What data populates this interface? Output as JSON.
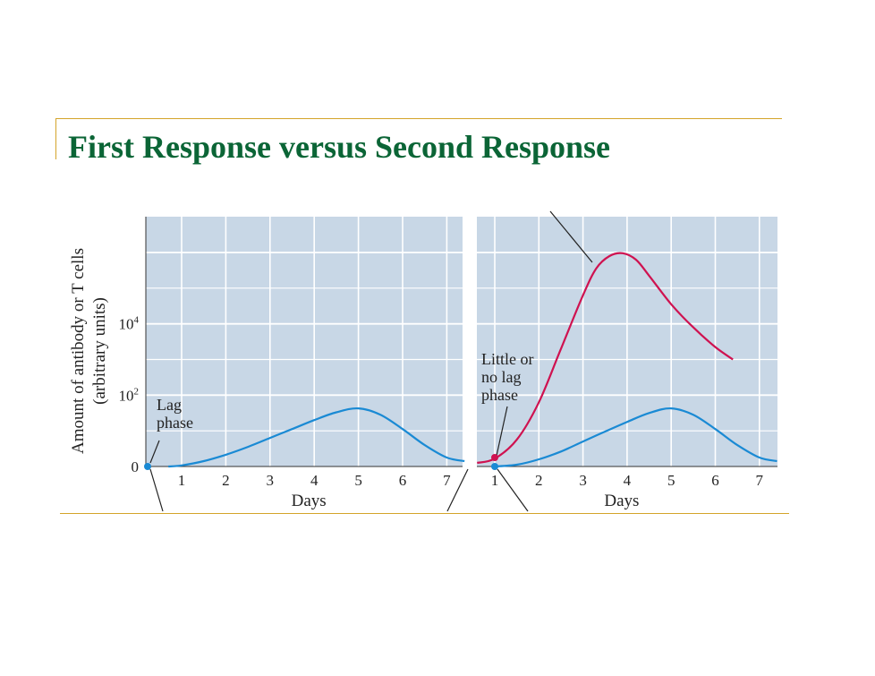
{
  "slide": {
    "title": "First Response versus Second Response"
  },
  "colors": {
    "title": "#0b6536",
    "rule": "#d4a42a",
    "plot_background": "#c8d7e6",
    "primary_response": "#1a8ad4",
    "secondary_response": "#cf1250"
  },
  "chart_data": [
    {
      "type": "line",
      "panel": "left",
      "xlabel": "Days",
      "ylabel": "Amount of antibody or T cells",
      "ylabel_sub": "(arbitrary units)",
      "xlim": [
        0.7,
        7.5
      ],
      "x_ticks": [
        "1",
        "2",
        "3",
        "4",
        "5",
        "6",
        "7"
      ],
      "y_ticks": [
        {
          "label": "0",
          "base": "0",
          "exp": ""
        },
        {
          "label": "10^2",
          "base": "10",
          "exp": "2"
        },
        {
          "label": "10^4",
          "base": "10",
          "exp": "4"
        }
      ],
      "log_scale": true,
      "grid": true,
      "annotations": [
        {
          "lines": [
            "Lag",
            "phase"
          ]
        }
      ],
      "series": [
        {
          "x": [
            0.7,
            1,
            1.5,
            2,
            2.5,
            3,
            3.5,
            4,
            4.5,
            5,
            5.5,
            6,
            6.5,
            7,
            7.4
          ],
          "y": [
            0,
            0.03,
            0.15,
            0.33,
            0.55,
            0.8,
            1.05,
            1.3,
            1.52,
            1.63,
            1.45,
            1.05,
            0.6,
            0.25,
            0.15
          ]
        }
      ]
    },
    {
      "type": "line",
      "panel": "right",
      "xlabel": "Days",
      "xlim": [
        0.6,
        7.4
      ],
      "x_ticks": [
        "1",
        "2",
        "3",
        "4",
        "5",
        "6",
        "7"
      ],
      "log_scale": true,
      "grid": true,
      "annotations": [
        {
          "lines": [
            "Little or",
            "no lag",
            "phase"
          ]
        }
      ],
      "series": [
        {
          "x": [
            0.6,
            1,
            1.5,
            2,
            2.5,
            3,
            3.3,
            3.6,
            3.9,
            4.2,
            4.5,
            5,
            5.5,
            6,
            6.4
          ],
          "y": [
            0.1,
            0.22,
            0.75,
            1.8,
            3.3,
            4.8,
            5.55,
            5.9,
            5.98,
            5.8,
            5.35,
            4.55,
            3.9,
            3.35,
            3.0
          ]
        },
        {
          "x": [
            1,
            1.5,
            2,
            2.5,
            3,
            3.5,
            4,
            4.5,
            5,
            5.5,
            6,
            6.5,
            7,
            7.4
          ],
          "y": [
            0,
            0.05,
            0.2,
            0.42,
            0.7,
            0.98,
            1.25,
            1.5,
            1.63,
            1.45,
            1.05,
            0.6,
            0.25,
            0.15
          ]
        }
      ]
    }
  ]
}
